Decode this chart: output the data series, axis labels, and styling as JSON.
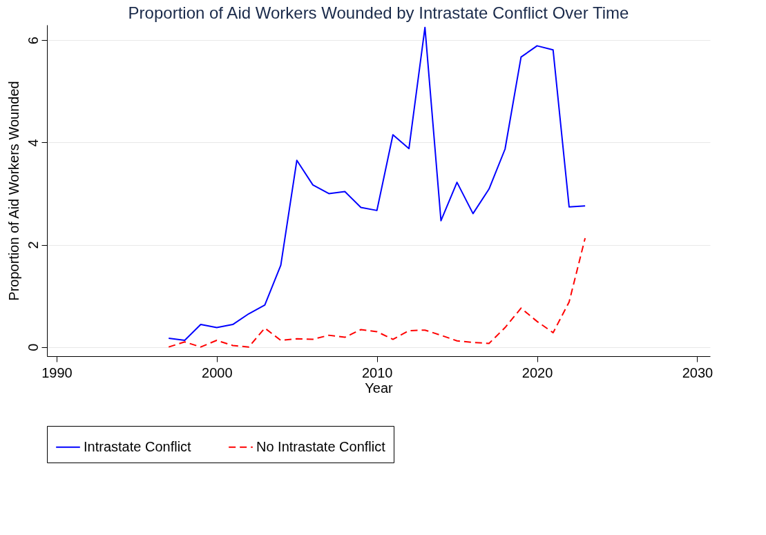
{
  "chart_data": {
    "type": "line",
    "title": "Proportion of Aid Workers Wounded by Intrastate Conflict Over Time",
    "xlabel": "Year",
    "ylabel": "Proportion of Aid Workers Wounded",
    "x": [
      1997,
      1998,
      1999,
      2000,
      2001,
      2002,
      2003,
      2004,
      2005,
      2006,
      2007,
      2008,
      2009,
      2010,
      2011,
      2012,
      2013,
      2014,
      2015,
      2016,
      2017,
      2018,
      2019,
      2020,
      2021,
      2022,
      2023
    ],
    "series": [
      {
        "name": "Intrastate Conflict",
        "color": "#0000ff",
        "line_style": "solid",
        "values": [
          0.17,
          0.13,
          0.44,
          0.38,
          0.44,
          0.65,
          0.82,
          1.6,
          3.65,
          3.17,
          3.0,
          3.04,
          2.73,
          2.67,
          4.15,
          3.88,
          6.25,
          2.47,
          3.22,
          2.61,
          3.09,
          3.87,
          5.67,
          5.89,
          5.81,
          2.74,
          2.76
        ]
      },
      {
        "name": "No Intrastate Conflict",
        "color": "#ff0000",
        "line_style": "dashed",
        "values": [
          0.0,
          0.1,
          0.0,
          0.13,
          0.03,
          0.0,
          0.37,
          0.13,
          0.16,
          0.15,
          0.23,
          0.19,
          0.34,
          0.3,
          0.15,
          0.32,
          0.33,
          0.23,
          0.12,
          0.09,
          0.07,
          0.38,
          0.76,
          0.5,
          0.28,
          0.88,
          2.13
        ]
      }
    ],
    "xlim": [
      1989.4,
      2030.8
    ],
    "xticks": [
      1990,
      2000,
      2010,
      2020,
      2030
    ],
    "ylim": [
      -0.18,
      6.3
    ],
    "yticks": [
      0,
      2,
      4,
      6
    ],
    "grid": "y",
    "legend": "bottom"
  }
}
